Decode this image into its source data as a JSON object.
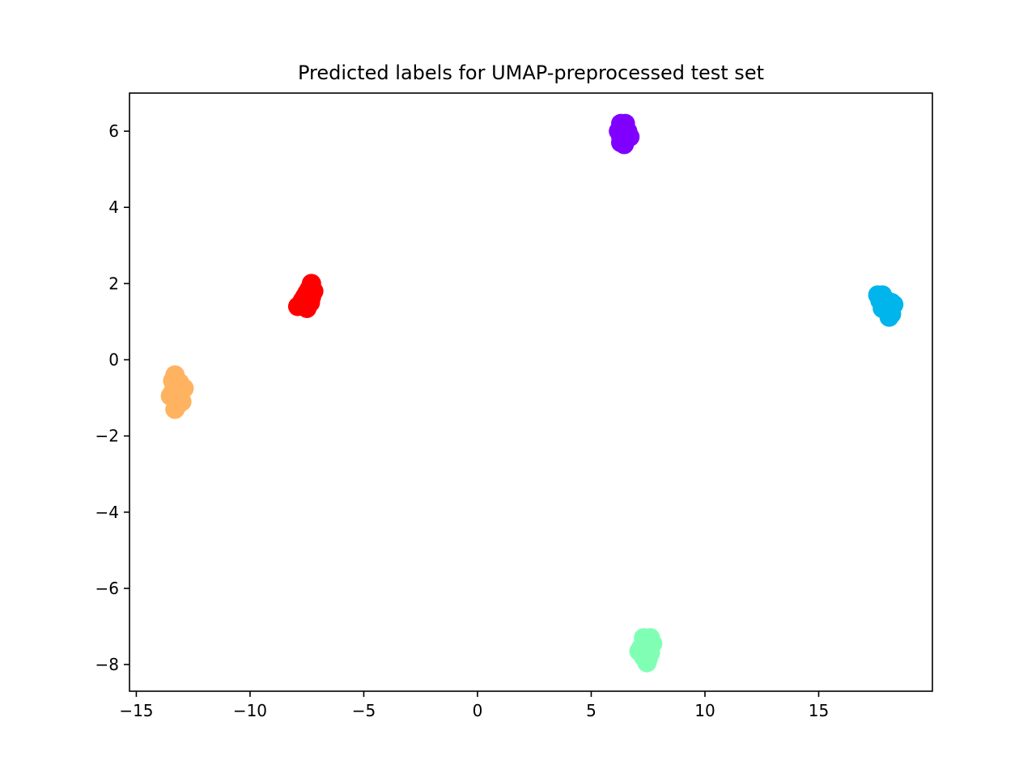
{
  "chart_data": {
    "type": "scatter",
    "title": "Predicted labels for UMAP-preprocessed test set",
    "xlabel": "",
    "ylabel": "",
    "xlim": [
      -15.3,
      20.0
    ],
    "ylim": [
      -8.7,
      7.0
    ],
    "xticks": [
      -15,
      -10,
      -5,
      0,
      5,
      10,
      15
    ],
    "yticks": [
      -8,
      -6,
      -4,
      -2,
      0,
      2,
      4,
      6
    ],
    "xtick_labels": [
      "−15",
      "−10",
      "−5",
      "0",
      "5",
      "10",
      "15"
    ],
    "ytick_labels": [
      "−8",
      "−6",
      "−4",
      "−2",
      "0",
      "2",
      "4",
      "6"
    ],
    "grid": false,
    "legend": "none",
    "series": [
      {
        "color": "#8000ff",
        "points": [
          [
            6.3,
            6.2
          ],
          [
            6.5,
            6.2
          ],
          [
            6.2,
            6.0
          ],
          [
            6.4,
            6.0
          ],
          [
            6.6,
            6.0
          ],
          [
            6.3,
            5.85
          ],
          [
            6.5,
            5.85
          ],
          [
            6.7,
            5.85
          ],
          [
            6.3,
            5.7
          ],
          [
            6.45,
            5.65
          ]
        ]
      },
      {
        "color": "#ff0000",
        "points": [
          [
            -7.3,
            2.0
          ],
          [
            -7.4,
            1.85
          ],
          [
            -7.2,
            1.8
          ],
          [
            -7.5,
            1.75
          ],
          [
            -7.6,
            1.65
          ],
          [
            -7.3,
            1.65
          ],
          [
            -7.7,
            1.55
          ],
          [
            -7.45,
            1.55
          ],
          [
            -7.8,
            1.45
          ],
          [
            -7.55,
            1.45
          ],
          [
            -7.35,
            1.5
          ],
          [
            -7.9,
            1.4
          ],
          [
            -7.5,
            1.35
          ]
        ]
      },
      {
        "color": "#ffb360",
        "points": [
          [
            -13.3,
            -0.4
          ],
          [
            -13.4,
            -0.55
          ],
          [
            -13.1,
            -0.6
          ],
          [
            -13.2,
            -0.75
          ],
          [
            -12.9,
            -0.75
          ],
          [
            -13.4,
            -0.85
          ],
          [
            -13.5,
            -0.95
          ],
          [
            -13.1,
            -0.95
          ],
          [
            -13.3,
            -1.05
          ],
          [
            -13.0,
            -1.1
          ],
          [
            -13.2,
            -1.2
          ],
          [
            -13.3,
            -1.3
          ]
        ]
      },
      {
        "color": "#00b5eb",
        "points": [
          [
            17.6,
            1.7
          ],
          [
            17.8,
            1.7
          ],
          [
            17.7,
            1.55
          ],
          [
            18.0,
            1.55
          ],
          [
            18.2,
            1.5
          ],
          [
            17.9,
            1.45
          ],
          [
            18.3,
            1.45
          ],
          [
            17.8,
            1.35
          ],
          [
            18.1,
            1.3
          ],
          [
            18.2,
            1.2
          ],
          [
            18.1,
            1.12
          ]
        ]
      },
      {
        "color": "#80ffb4",
        "points": [
          [
            7.3,
            -7.3
          ],
          [
            7.6,
            -7.3
          ],
          [
            7.4,
            -7.45
          ],
          [
            7.7,
            -7.45
          ],
          [
            7.2,
            -7.55
          ],
          [
            7.5,
            -7.6
          ],
          [
            7.1,
            -7.65
          ],
          [
            7.35,
            -7.7
          ],
          [
            7.6,
            -7.7
          ],
          [
            7.3,
            -7.8
          ],
          [
            7.5,
            -7.85
          ],
          [
            7.45,
            -7.95
          ]
        ]
      }
    ]
  }
}
